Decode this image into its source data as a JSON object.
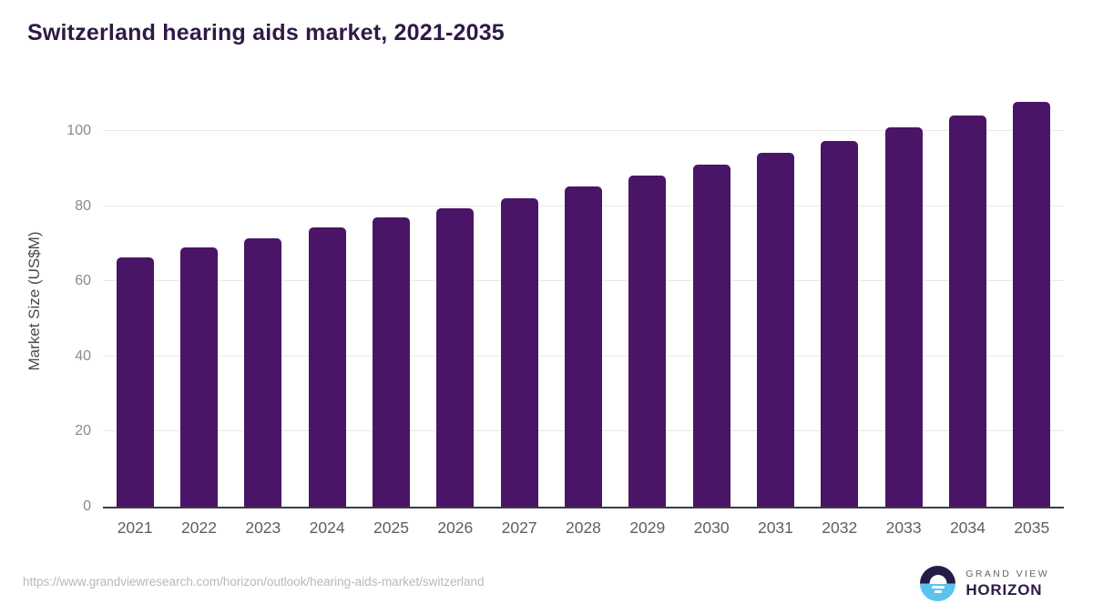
{
  "title": "Switzerland hearing aids market, 2021-2035",
  "chart_data": {
    "type": "bar",
    "title": "Switzerland hearing aids market, 2021-2035",
    "categories": [
      "2021",
      "2022",
      "2023",
      "2024",
      "2025",
      "2026",
      "2027",
      "2028",
      "2029",
      "2030",
      "2031",
      "2032",
      "2033",
      "2034",
      "2035"
    ],
    "values": [
      66.4,
      69.0,
      71.4,
      74.5,
      77.0,
      79.4,
      82.1,
      85.2,
      88.2,
      91.0,
      94.2,
      97.5,
      101.1,
      104.3,
      107.9
    ],
    "xlabel": "",
    "ylabel": "Market Size (US$M)",
    "ylim": [
      0,
      110
    ],
    "yticks": [
      0,
      20,
      40,
      60,
      80,
      100
    ],
    "grid": true,
    "legend": false,
    "bar_color": "#4a1566"
  },
  "footer": {
    "source_url": "https://www.grandviewresearch.com/horizon/outlook/hearing-aids-market/switzerland",
    "brand": {
      "line1": "GRAND VIEW",
      "line2": "HORIZON",
      "logo_icon": "sunrise-horizon-icon",
      "logo_top_color": "#241b47",
      "logo_bottom_color": "#5bc3ee"
    }
  },
  "colors": {
    "title": "#2e1a47",
    "bar": "#4a1566",
    "gridline": "#e8e8e8",
    "axis_line": "#3d3d3d",
    "tick_label": "#8a8a8a",
    "x_label": "#5f5f5f",
    "source_url": "#b8b8b8"
  }
}
